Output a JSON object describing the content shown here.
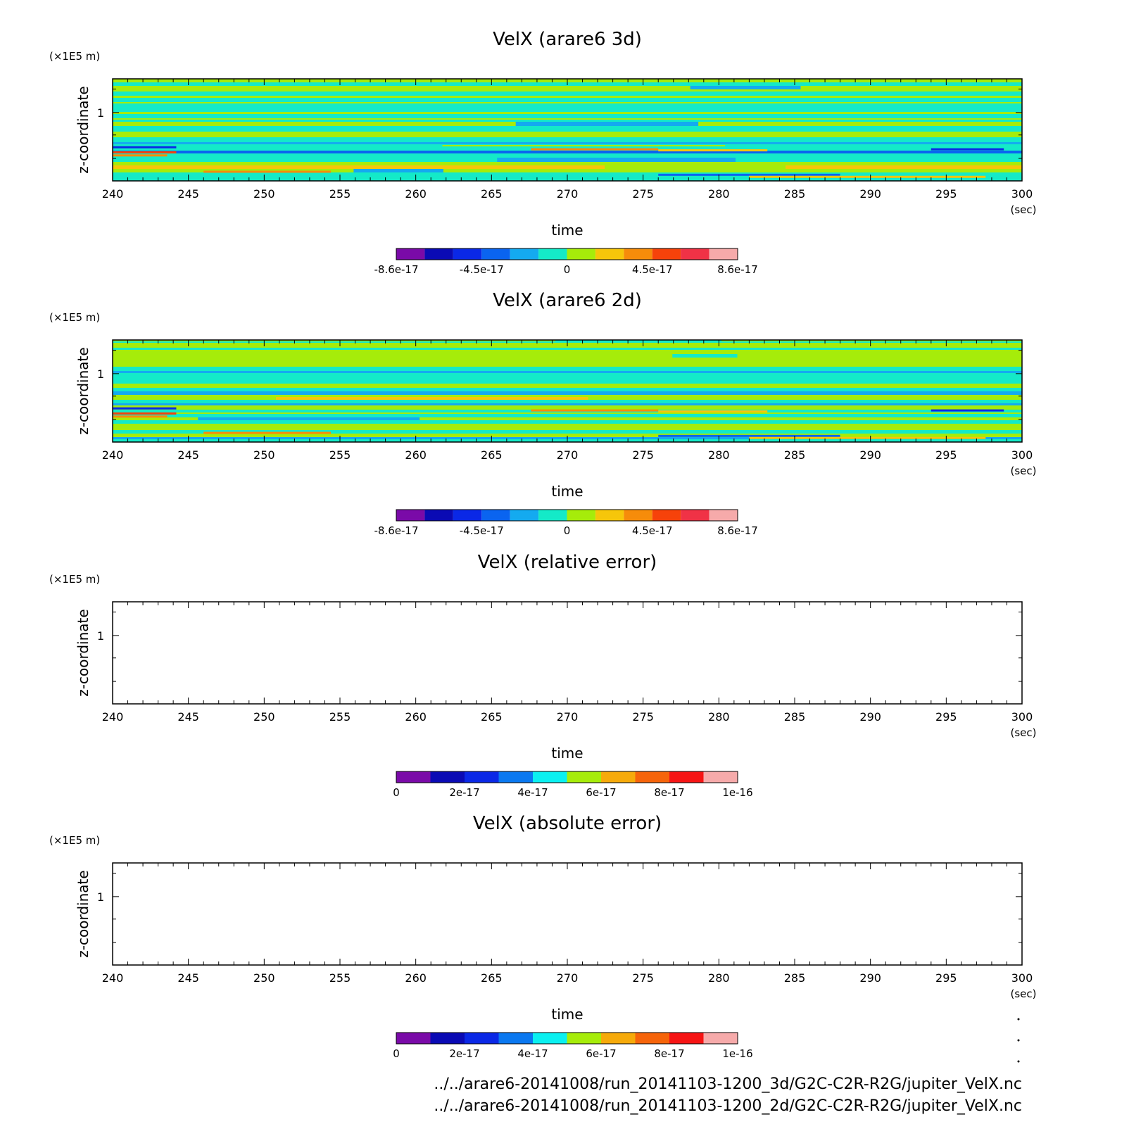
{
  "chart_data": [
    {
      "type": "heatmap",
      "title": "VelX (arare6 3d)",
      "xlabel": "time",
      "xunit": "(sec)",
      "ylabel": "z-coordinate",
      "yunit": "(×1E5 m)",
      "xlim": [
        240,
        300
      ],
      "xticks": [
        "240",
        "245",
        "250",
        "255",
        "260",
        "265",
        "270",
        "275",
        "280",
        "285",
        "290",
        "295",
        "300"
      ],
      "yticks": [
        "1"
      ],
      "filled": true,
      "colorbar": {
        "colors": [
          "#7a0aa8",
          "#0a0ab4",
          "#0a28e6",
          "#0a64f0",
          "#14aaf0",
          "#14eac8",
          "#a6ec0a",
          "#f6c60a",
          "#f68c0a",
          "#f6420a",
          "#f03246",
          "#f6aaaa"
        ],
        "labels": [
          "-8.6e-17",
          "-4.5e-17",
          "0",
          "4.5e-17",
          "8.6e-17"
        ]
      }
    },
    {
      "type": "heatmap",
      "title": "VelX (arare6 2d)",
      "xlabel": "time",
      "xunit": "(sec)",
      "ylabel": "z-coordinate",
      "yunit": "(×1E5 m)",
      "xlim": [
        240,
        300
      ],
      "xticks": [
        "240",
        "245",
        "250",
        "255",
        "260",
        "265",
        "270",
        "275",
        "280",
        "285",
        "290",
        "295",
        "300"
      ],
      "yticks": [
        "1"
      ],
      "filled": true,
      "colorbar": {
        "colors": [
          "#7a0aa8",
          "#0a0ab4",
          "#0a28e6",
          "#0a64f0",
          "#14aaf0",
          "#14eac8",
          "#a6ec0a",
          "#f6c60a",
          "#f68c0a",
          "#f6420a",
          "#f03246",
          "#f6aaaa"
        ],
        "labels": [
          "-8.6e-17",
          "-4.5e-17",
          "0",
          "4.5e-17",
          "8.6e-17"
        ]
      }
    },
    {
      "type": "heatmap",
      "title": "VelX (relative error)",
      "xlabel": "time",
      "xunit": "(sec)",
      "ylabel": "z-coordinate",
      "yunit": "(×1E5 m)",
      "xlim": [
        240,
        300
      ],
      "xticks": [
        "240",
        "245",
        "250",
        "255",
        "260",
        "265",
        "270",
        "275",
        "280",
        "285",
        "290",
        "295",
        "300"
      ],
      "yticks": [
        "1"
      ],
      "filled": false,
      "colorbar": {
        "colors": [
          "#7a0aa8",
          "#0a0ab4",
          "#0a28e6",
          "#0a78f0",
          "#0af0f0",
          "#a6ec0a",
          "#f6aa0a",
          "#f6640a",
          "#f61414",
          "#f6aaaa"
        ],
        "labels": [
          "0",
          "2e-17",
          "4e-17",
          "6e-17",
          "8e-17",
          "1e-16"
        ]
      }
    },
    {
      "type": "heatmap",
      "title": "VelX (absolute error)",
      "xlabel": "time",
      "xunit": "(sec)",
      "ylabel": "z-coordinate",
      "yunit": "(×1E5 m)",
      "xlim": [
        240,
        300
      ],
      "xticks": [
        "240",
        "245",
        "250",
        "255",
        "260",
        "265",
        "270",
        "275",
        "280",
        "285",
        "290",
        "295",
        "300"
      ],
      "yticks": [
        "1"
      ],
      "filled": false,
      "colorbar": {
        "colors": [
          "#7a0aa8",
          "#0a0ab4",
          "#0a28e6",
          "#0a78f0",
          "#0af0f0",
          "#a6ec0a",
          "#f6aa0a",
          "#f6640a",
          "#f61414",
          "#f6aaaa"
        ],
        "labels": [
          "0",
          "2e-17",
          "4e-17",
          "6e-17",
          "8e-17",
          "1e-16"
        ]
      }
    }
  ],
  "footer": {
    "line1": "../../arare6-20141008/run_20141103-1200_3d/G2C-C2R-R2G/jupiter_VelX.nc",
    "line2": "../../arare6-20141008/run_20141103-1200_2d/G2C-C2R-R2G/jupiter_VelX.nc"
  }
}
